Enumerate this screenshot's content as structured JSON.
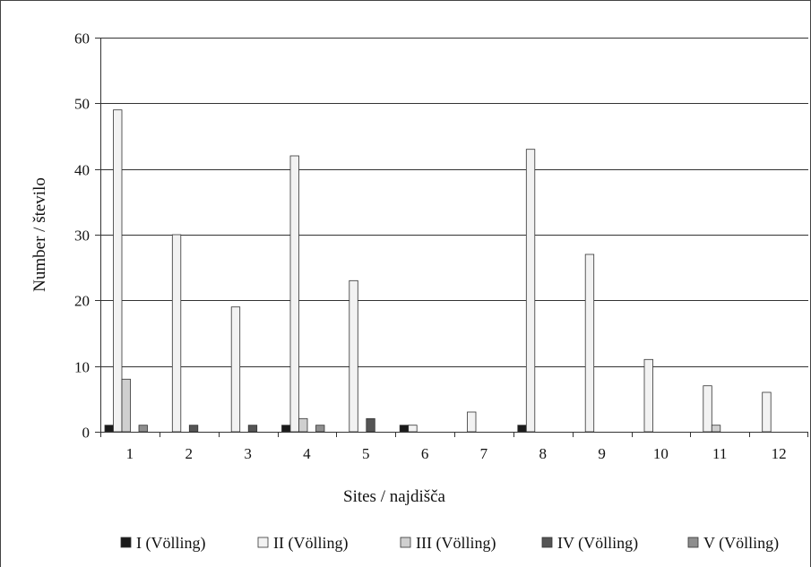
{
  "chart_data": {
    "type": "bar",
    "xlabel": "Sites / najdišča",
    "ylabel": "Number / število",
    "ylim": [
      0,
      60
    ],
    "yticks": [
      "0",
      "10",
      "20",
      "30",
      "40",
      "50",
      "60"
    ],
    "grid": true,
    "legend_position": "bottom",
    "categories": [
      "1",
      "2",
      "3",
      "4",
      "5",
      "6",
      "7",
      "8",
      "9",
      "10",
      "11",
      "12"
    ],
    "series": [
      {
        "name": "I (Völling)",
        "color": "#1a1a1a",
        "values": [
          1,
          0,
          0,
          1,
          0,
          1,
          0,
          1,
          0,
          0,
          0,
          0
        ]
      },
      {
        "name": "II (Völling)",
        "color": "#f2f2f2",
        "values": [
          49,
          30,
          19,
          42,
          23,
          1,
          3,
          43,
          27,
          11,
          7,
          6
        ]
      },
      {
        "name": "III (Völling)",
        "color": "#cfcfcf",
        "values": [
          8,
          0,
          0,
          2,
          0,
          0,
          0,
          0,
          0,
          0,
          1,
          0
        ]
      },
      {
        "name": "IV (Völling)",
        "color": "#555555",
        "values": [
          0,
          1,
          1,
          0,
          2,
          0,
          0,
          0,
          0,
          0,
          0,
          0
        ]
      },
      {
        "name": "V (Völling)",
        "color": "#8e8e8e",
        "values": [
          1,
          0,
          0,
          1,
          0,
          0,
          0,
          0,
          0,
          0,
          0,
          0
        ]
      }
    ]
  }
}
